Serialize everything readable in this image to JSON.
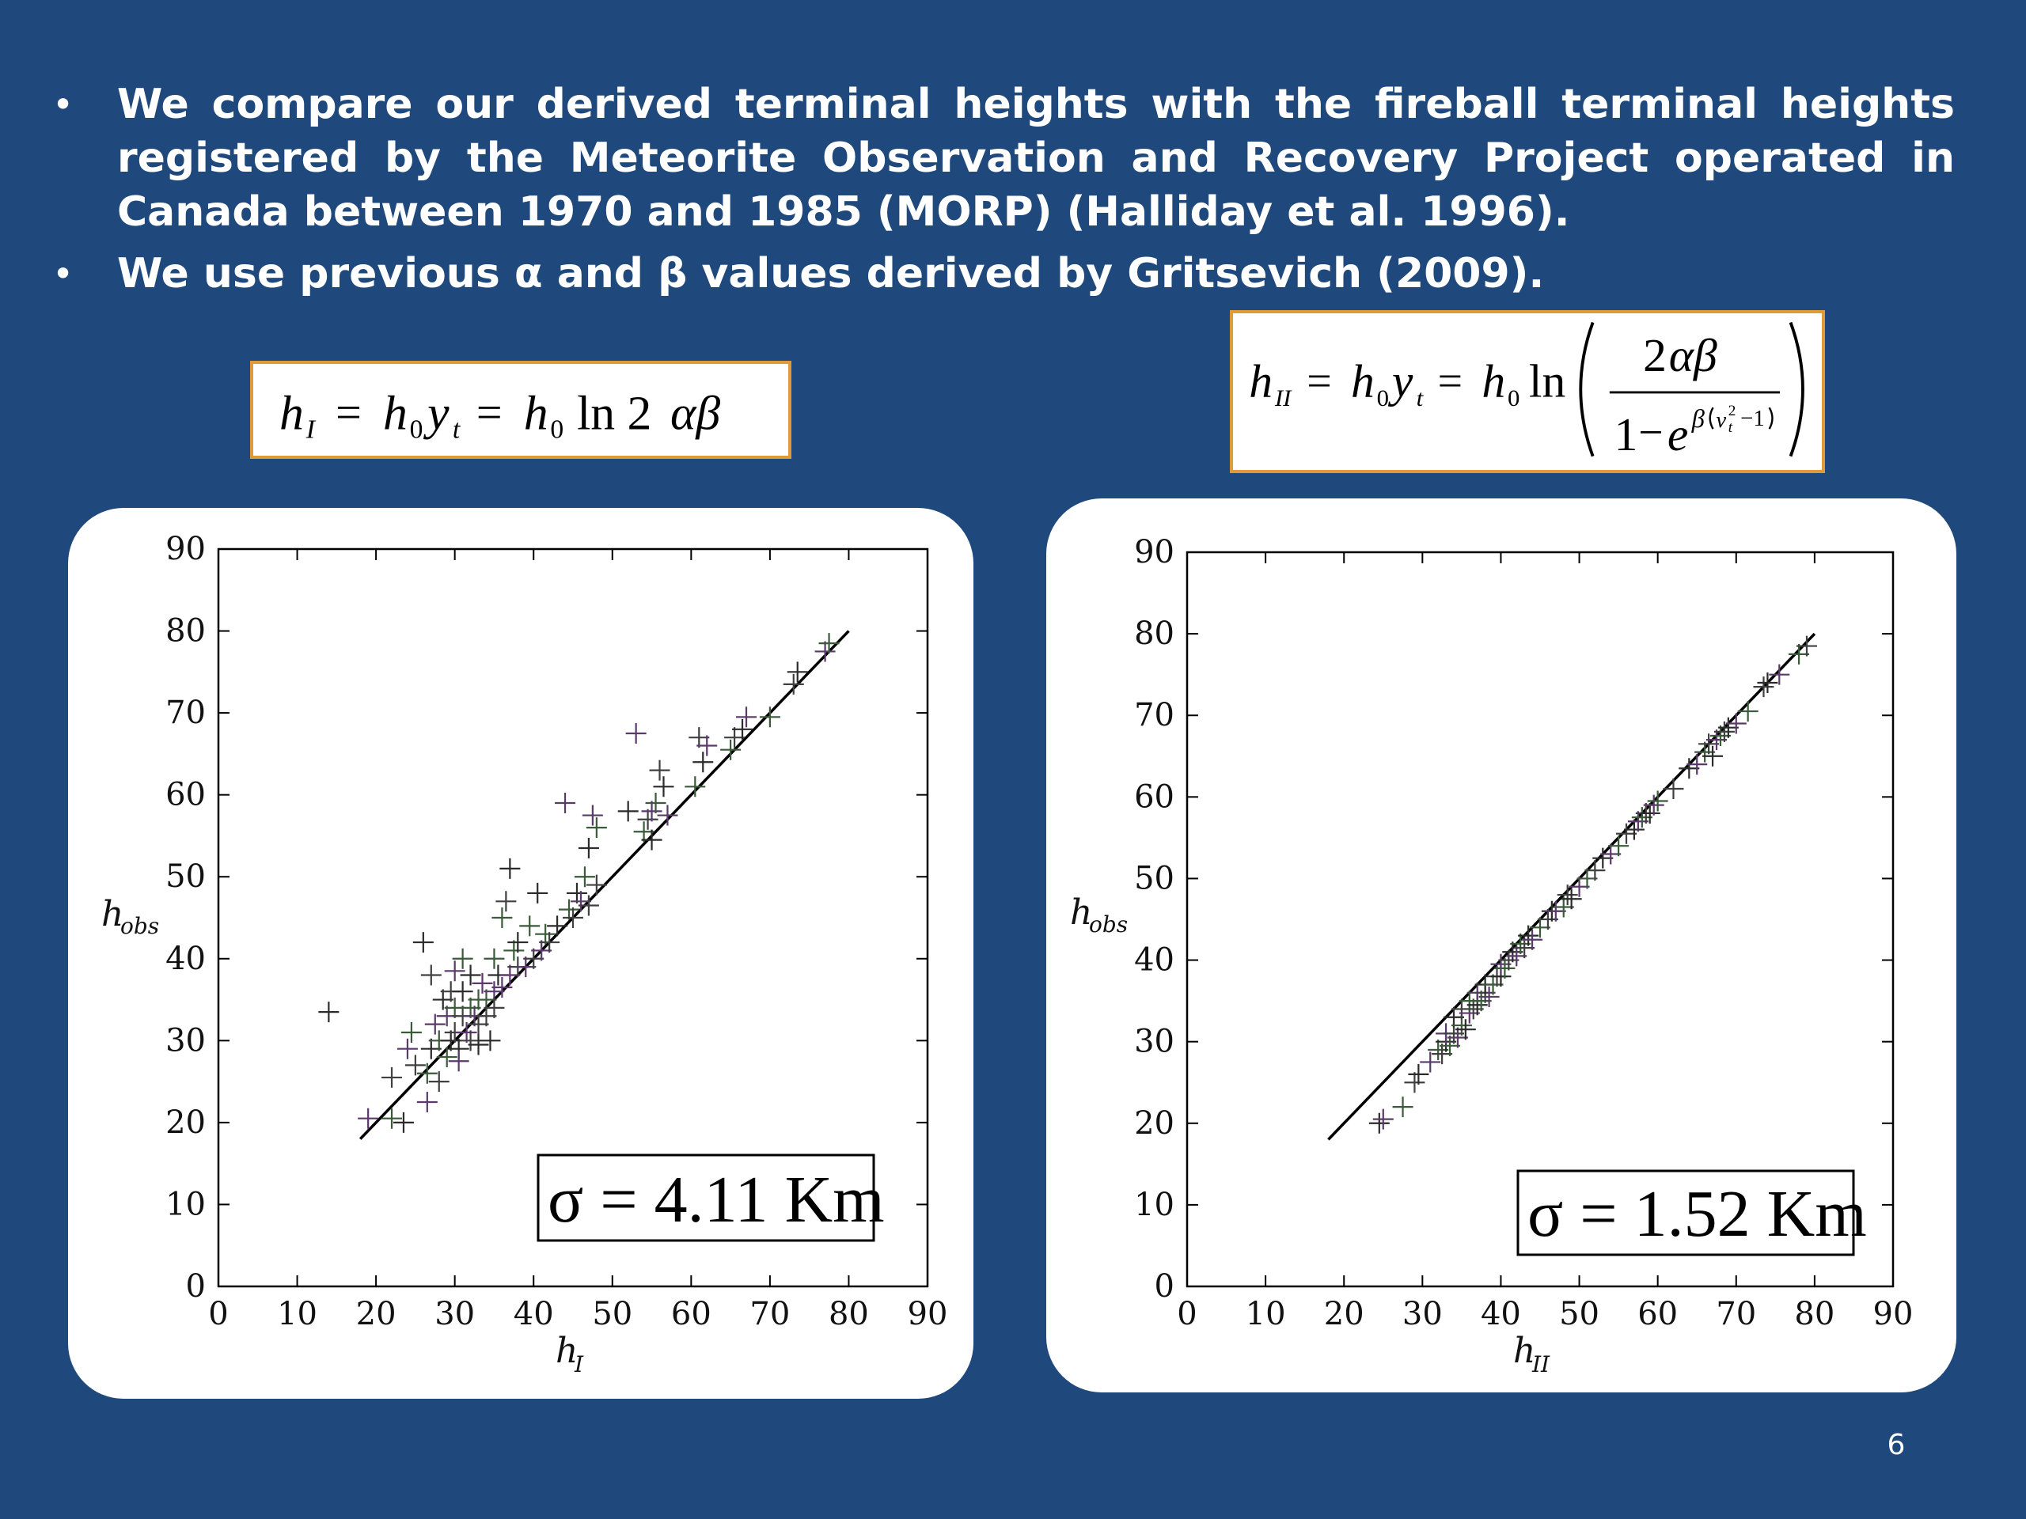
{
  "slide": {
    "bullets": [
      "We compare our derived terminal heights with the fireball terminal heights registered by the Meteorite Observation  and Recovery Project operated in Canada between 1970 and 1985 (MORP) (Halliday et al. 1996).",
      "We use previous α and β values derived by Gritsevich (2009)."
    ],
    "bullet_symbol": "•",
    "page_number": "6",
    "colors": {
      "background": "#1f497d",
      "text": "#ffffff",
      "formula_border": "#e09a38"
    }
  },
  "formulas": {
    "left": "h_I = h_0 y_t = h_0 ln 2αβ",
    "right": "h_II = h_0 y_t = h_0 ln( 2αβ / (1 − e^{β(v_t^2 − 1)}) )"
  },
  "chart_data": [
    {
      "type": "scatter",
      "xlabel": "h_I",
      "ylabel": "h_obs",
      "xlim": [
        0,
        90
      ],
      "ylim": [
        0,
        90
      ],
      "ticks": [
        0,
        10,
        20,
        30,
        40,
        50,
        60,
        70,
        80,
        90
      ],
      "marker": "+",
      "annotation": "σ = 4.11 Km",
      "reference_line": {
        "from": [
          18,
          18
        ],
        "to": [
          80,
          80
        ]
      },
      "points": [
        [
          14,
          33.5
        ],
        [
          19,
          20.5
        ],
        [
          22,
          20.5
        ],
        [
          22,
          25.5
        ],
        [
          23.5,
          20
        ],
        [
          24,
          29
        ],
        [
          24.5,
          31
        ],
        [
          25,
          27
        ],
        [
          26,
          42
        ],
        [
          26.5,
          22.5
        ],
        [
          26.5,
          26
        ],
        [
          27,
          38
        ],
        [
          27,
          29
        ],
        [
          27.5,
          32
        ],
        [
          28,
          30
        ],
        [
          28,
          25
        ],
        [
          28.5,
          35
        ],
        [
          29,
          33
        ],
        [
          29,
          28
        ],
        [
          29.5,
          36
        ],
        [
          29.5,
          30
        ],
        [
          30,
          38.5
        ],
        [
          30,
          34
        ],
        [
          30,
          31
        ],
        [
          30.5,
          29
        ],
        [
          30.5,
          27.5
        ],
        [
          31,
          40
        ],
        [
          31,
          33
        ],
        [
          31,
          36
        ],
        [
          31.5,
          31
        ],
        [
          32,
          34
        ],
        [
          32,
          30
        ],
        [
          32,
          38
        ],
        [
          32.5,
          33
        ],
        [
          33,
          35
        ],
        [
          33,
          32
        ],
        [
          33,
          29.5
        ],
        [
          33.5,
          37
        ],
        [
          34,
          35
        ],
        [
          34,
          33
        ],
        [
          34.5,
          30
        ],
        [
          35,
          36
        ],
        [
          35,
          40
        ],
        [
          35,
          34
        ],
        [
          35.5,
          38
        ],
        [
          36,
          36.5
        ],
        [
          36,
          45
        ],
        [
          36.5,
          47
        ],
        [
          37,
          51
        ],
        [
          37,
          38
        ],
        [
          37.5,
          41
        ],
        [
          38,
          39
        ],
        [
          38,
          42
        ],
        [
          39,
          39
        ],
        [
          39.5,
          44
        ],
        [
          40,
          40
        ],
        [
          40.5,
          48
        ],
        [
          41,
          41
        ],
        [
          41.5,
          43
        ],
        [
          42,
          42
        ],
        [
          43,
          44
        ],
        [
          44,
          59
        ],
        [
          44.5,
          46
        ],
        [
          45,
          45
        ],
        [
          45.5,
          48
        ],
        [
          46,
          47
        ],
        [
          46.5,
          50
        ],
        [
          47,
          46.5
        ],
        [
          47,
          53.5
        ],
        [
          47.5,
          57.5
        ],
        [
          48,
          56
        ],
        [
          48,
          49
        ],
        [
          52,
          58
        ],
        [
          53,
          67.5
        ],
        [
          54,
          55.5
        ],
        [
          54.5,
          57
        ],
        [
          55,
          54.5
        ],
        [
          55,
          58
        ],
        [
          55.5,
          59
        ],
        [
          56,
          63
        ],
        [
          56.5,
          61
        ],
        [
          57,
          57.5
        ],
        [
          60.5,
          61
        ],
        [
          61,
          67
        ],
        [
          61.5,
          64
        ],
        [
          62,
          66
        ],
        [
          65,
          65.5
        ],
        [
          65.5,
          67
        ],
        [
          66.5,
          68
        ],
        [
          67,
          69.5
        ],
        [
          70,
          69.5
        ],
        [
          73,
          73.5
        ],
        [
          73.5,
          75
        ],
        [
          77,
          77.5
        ],
        [
          77.5,
          78.5
        ]
      ]
    },
    {
      "type": "scatter",
      "xlabel": "h_II",
      "ylabel": "h_obs",
      "xlim": [
        0,
        90
      ],
      "ylim": [
        0,
        90
      ],
      "ticks": [
        0,
        10,
        20,
        30,
        40,
        50,
        60,
        70,
        80,
        90
      ],
      "marker": "+",
      "annotation": "σ = 1.52 Km",
      "reference_line": {
        "from": [
          18,
          18
        ],
        "to": [
          80,
          80
        ]
      },
      "points": [
        [
          24.5,
          20
        ],
        [
          25,
          20.5
        ],
        [
          27.5,
          22
        ],
        [
          29,
          25
        ],
        [
          29.5,
          26
        ],
        [
          31,
          27.5
        ],
        [
          32,
          29
        ],
        [
          32.5,
          28.5
        ],
        [
          33,
          30
        ],
        [
          33,
          31
        ],
        [
          33.5,
          29.5
        ],
        [
          34,
          31
        ],
        [
          34,
          33
        ],
        [
          34.5,
          30.5
        ],
        [
          35,
          32
        ],
        [
          35,
          34
        ],
        [
          35.5,
          31.5
        ],
        [
          36,
          33.5
        ],
        [
          36,
          35
        ],
        [
          36.5,
          34
        ],
        [
          37,
          34.5
        ],
        [
          37,
          36
        ],
        [
          37.5,
          35
        ],
        [
          38,
          36
        ],
        [
          38,
          37
        ],
        [
          38.5,
          35.5
        ],
        [
          39,
          37
        ],
        [
          39.5,
          38
        ],
        [
          40,
          38
        ],
        [
          40,
          39.5
        ],
        [
          40.5,
          39
        ],
        [
          41,
          40
        ],
        [
          41.5,
          41
        ],
        [
          42,
          40.5
        ],
        [
          42.5,
          42
        ],
        [
          43,
          41.5
        ],
        [
          43.5,
          43
        ],
        [
          44,
          42.5
        ],
        [
          45,
          44
        ],
        [
          46,
          45
        ],
        [
          46.5,
          46
        ],
        [
          47,
          46
        ],
        [
          48,
          46.5
        ],
        [
          48.5,
          48
        ],
        [
          49,
          47.5
        ],
        [
          50,
          49
        ],
        [
          51,
          50
        ],
        [
          52,
          51
        ],
        [
          53,
          52.5
        ],
        [
          54,
          53
        ],
        [
          55,
          54
        ],
        [
          56,
          55.5
        ],
        [
          57,
          56
        ],
        [
          57.5,
          57
        ],
        [
          58,
          57.5
        ],
        [
          58.5,
          58
        ],
        [
          59,
          58
        ],
        [
          59.5,
          59
        ],
        [
          60,
          59.5
        ],
        [
          62,
          61
        ],
        [
          64,
          63.5
        ],
        [
          65,
          64
        ],
        [
          66,
          65.5
        ],
        [
          66.5,
          66.5
        ],
        [
          67,
          65
        ],
        [
          67.5,
          67
        ],
        [
          68,
          67.5
        ],
        [
          68.5,
          68
        ],
        [
          69,
          68.5
        ],
        [
          70,
          69
        ],
        [
          71.5,
          70.5
        ],
        [
          73.5,
          73.5
        ],
        [
          74,
          74
        ],
        [
          75.5,
          75
        ],
        [
          78,
          77.5
        ],
        [
          79,
          78.5
        ]
      ]
    }
  ]
}
